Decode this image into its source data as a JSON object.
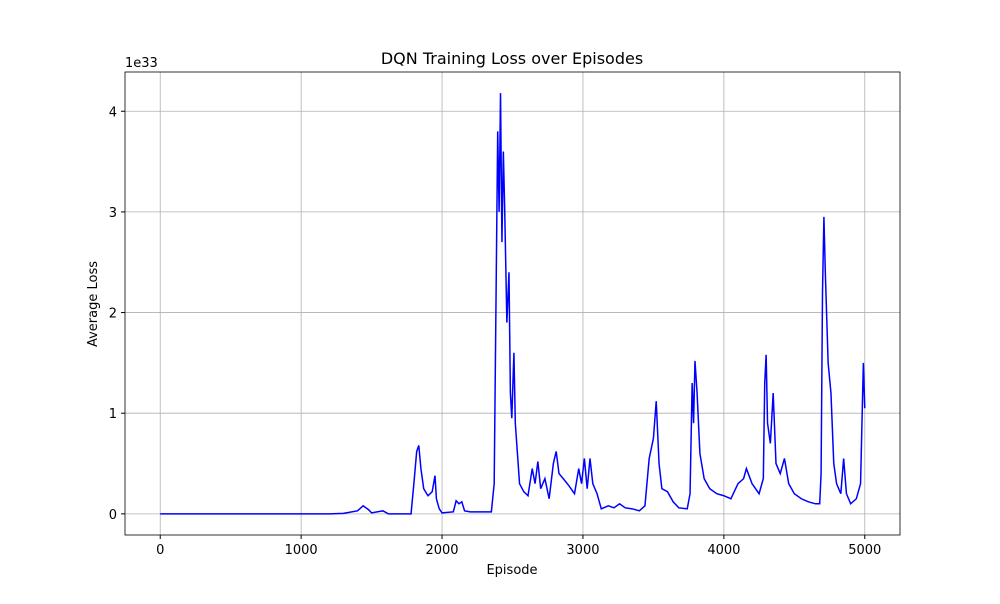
{
  "chart_data": {
    "type": "line",
    "title": "DQN Training Loss over Episodes",
    "x_label": "Episode",
    "y_label": "Average Loss",
    "y_offset_text": "1e33",
    "x": [
      0,
      200,
      400,
      600,
      800,
      1000,
      1200,
      1300,
      1400,
      1440,
      1480,
      1500,
      1580,
      1620,
      1780,
      1800,
      1820,
      1835,
      1850,
      1870,
      1900,
      1930,
      1950,
      1960,
      1980,
      2000,
      2080,
      2100,
      2120,
      2140,
      2160,
      2200,
      2350,
      2370,
      2385,
      2395,
      2405,
      2415,
      2425,
      2435,
      2445,
      2460,
      2475,
      2485,
      2495,
      2510,
      2520,
      2535,
      2550,
      2580,
      2610,
      2640,
      2660,
      2680,
      2700,
      2730,
      2760,
      2790,
      2810,
      2830,
      2860,
      2900,
      2940,
      2970,
      2990,
      3010,
      3030,
      3050,
      3070,
      3100,
      3130,
      3180,
      3220,
      3260,
      3300,
      3350,
      3400,
      3440,
      3470,
      3500,
      3520,
      3540,
      3560,
      3600,
      3640,
      3680,
      3740,
      3760,
      3775,
      3785,
      3795,
      3810,
      3830,
      3860,
      3900,
      3950,
      4000,
      4050,
      4100,
      4140,
      4160,
      4200,
      4250,
      4280,
      4290,
      4300,
      4310,
      4330,
      4350,
      4370,
      4400,
      4430,
      4460,
      4500,
      4550,
      4600,
      4650,
      4680,
      4690,
      4700,
      4710,
      4720,
      4740,
      4760,
      4780,
      4800,
      4830,
      4850,
      4870,
      4900,
      4940,
      4970,
      4990,
      5000
    ],
    "series": [
      {
        "name": "Average Loss",
        "color": "#0000ff",
        "values": [
          0,
          0,
          0,
          0,
          0,
          0,
          0,
          0.005,
          0.03,
          0.08,
          0.04,
          0.01,
          0.03,
          0,
          0,
          0.3,
          0.62,
          0.68,
          0.45,
          0.25,
          0.18,
          0.22,
          0.38,
          0.15,
          0.05,
          0.01,
          0.02,
          0.13,
          0.1,
          0.12,
          0.03,
          0.02,
          0.02,
          0.3,
          2.4,
          3.8,
          3.0,
          4.18,
          2.7,
          3.6,
          3.0,
          1.9,
          2.4,
          1.2,
          0.95,
          1.6,
          0.9,
          0.6,
          0.3,
          0.22,
          0.18,
          0.45,
          0.3,
          0.52,
          0.25,
          0.35,
          0.15,
          0.5,
          0.62,
          0.4,
          0.35,
          0.28,
          0.2,
          0.45,
          0.3,
          0.55,
          0.25,
          0.55,
          0.3,
          0.2,
          0.05,
          0.08,
          0.06,
          0.1,
          0.06,
          0.05,
          0.03,
          0.08,
          0.55,
          0.75,
          1.12,
          0.5,
          0.25,
          0.22,
          0.12,
          0.06,
          0.05,
          0.2,
          1.3,
          0.9,
          1.52,
          1.2,
          0.6,
          0.35,
          0.25,
          0.2,
          0.18,
          0.15,
          0.3,
          0.35,
          0.45,
          0.3,
          0.2,
          0.35,
          1.3,
          1.58,
          0.9,
          0.7,
          1.2,
          0.5,
          0.4,
          0.55,
          0.3,
          0.2,
          0.15,
          0.12,
          0.1,
          0.1,
          0.4,
          2.2,
          2.95,
          2.4,
          1.5,
          1.2,
          0.5,
          0.3,
          0.2,
          0.55,
          0.2,
          0.1,
          0.15,
          0.3,
          1.5,
          1.05
        ]
      }
    ],
    "xlim": [
      -250,
      5250
    ],
    "ylim": [
      -0.21,
      4.39
    ],
    "xticks": [
      0,
      1000,
      2000,
      3000,
      4000,
      5000
    ],
    "yticks": [
      0,
      1,
      2,
      3,
      4
    ],
    "grid": true
  }
}
